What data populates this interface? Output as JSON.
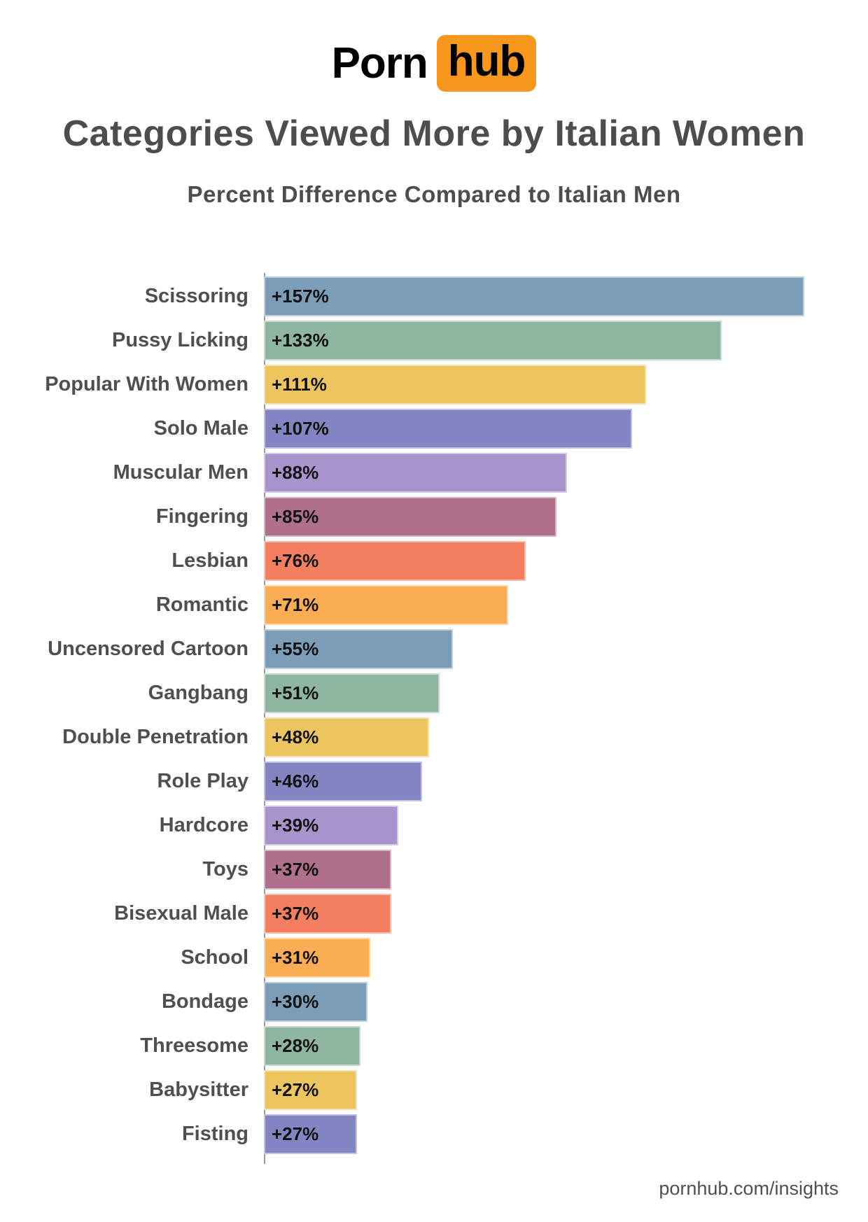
{
  "logo": {
    "part1": "Porn",
    "part2": "hub",
    "accent_color": "#f7971d"
  },
  "header": {
    "title": "Categories Viewed More by Italian Women",
    "subtitle": "Percent Difference Compared to Italian Men"
  },
  "footer": {
    "site_label": "pornhub.com/insights"
  },
  "chart_data": {
    "type": "bar",
    "orientation": "horizontal",
    "title": "Categories Viewed More by Italian Women",
    "subtitle": "Percent Difference Compared to Italian Men",
    "xlabel": "",
    "ylabel": "",
    "xlim": [
      0,
      157
    ],
    "grid": false,
    "legend": false,
    "value_suffix": "%",
    "axis_color": "#9b9b9b",
    "categories": [
      "Scissoring",
      "Pussy Licking",
      "Popular With Women",
      "Solo Male",
      "Muscular Men",
      "Fingering",
      "Lesbian",
      "Romantic",
      "Uncensored Cartoon",
      "Gangbang",
      "Double Penetration",
      "Role Play",
      "Hardcore",
      "Toys",
      "Bisexual Male",
      "School",
      "Bondage",
      "Threesome",
      "Babysitter",
      "Fisting"
    ],
    "values": [
      157,
      133,
      111,
      107,
      88,
      85,
      76,
      71,
      55,
      51,
      48,
      46,
      39,
      37,
      37,
      31,
      30,
      28,
      27,
      27
    ],
    "value_labels": [
      "+157%",
      "+133%",
      "+111%",
      "+107%",
      "+88%",
      "+85%",
      "+76%",
      "+71%",
      "+55%",
      "+51%",
      "+48%",
      "+46%",
      "+39%",
      "+37%",
      "+37%",
      "+31%",
      "+30%",
      "+28%",
      "+27%",
      "+27%"
    ],
    "palette": [
      "#7C9DB8",
      "#8DB5A0",
      "#ECC55F",
      "#8285C2",
      "#A893CC",
      "#B06F8B",
      "#F37E60",
      "#FBAD53"
    ],
    "bar_colors": [
      "#7C9DB8",
      "#8DB5A0",
      "#ECC55F",
      "#8285C2",
      "#A893CC",
      "#B06F8B",
      "#F37E60",
      "#FBAD53",
      "#7C9DB8",
      "#8DB5A0",
      "#ECC55F",
      "#8285C2",
      "#A893CC",
      "#B06F8B",
      "#F37E60",
      "#FBAD53",
      "#7C9DB8",
      "#8DB5A0",
      "#ECC55F",
      "#8285C2"
    ]
  }
}
